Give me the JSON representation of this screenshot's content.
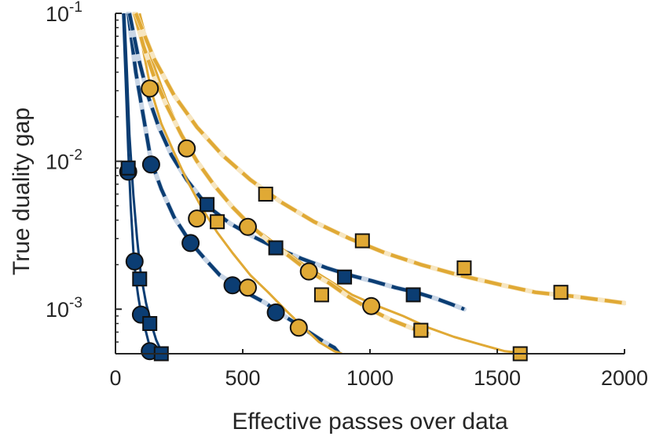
{
  "chart_data": {
    "type": "line",
    "title": "",
    "xlabel": "Effective passes over data",
    "ylabel": "True duality gap",
    "xlim": [
      0,
      2000
    ],
    "ylim": [
      0.0005,
      0.1
    ],
    "yscale": "log",
    "xticks": [
      0,
      500,
      1000,
      1500,
      2000
    ],
    "xtick_labels": [
      "0",
      "500",
      "1000",
      "1500",
      "2000"
    ],
    "yticks": [
      0.1,
      0.01,
      0.001
    ],
    "ytick_labels": [
      {
        "base": "10",
        "exp": "-1"
      },
      {
        "base": "10",
        "exp": "-2"
      },
      {
        "base": "10",
        "exp": "-3"
      }
    ],
    "grid": false,
    "colors": {
      "blue": "#0b3d73",
      "gold": "#e0a935",
      "blue_halo": "#c9d6e6",
      "gold_halo": "#f7e6c0"
    },
    "series": [
      {
        "name": "blue-solid-circle",
        "color": "blue",
        "style": "solid",
        "marker": "circle",
        "halo": false,
        "x": [
          30,
          40,
          50,
          60,
          70,
          80,
          90,
          100,
          110,
          120,
          130,
          140,
          150,
          155
        ],
        "y": [
          0.1,
          0.035,
          0.012,
          0.005,
          0.0025,
          0.0016,
          0.0012,
          0.00095,
          0.0008,
          0.0007,
          0.0006,
          0.00055,
          0.00052,
          0.0005
        ],
        "markers_x": [
          50,
          75,
          100,
          135
        ],
        "markers_y": [
          0.0085,
          0.0021,
          0.00092,
          0.00052
        ]
      },
      {
        "name": "blue-solid-square",
        "color": "blue",
        "style": "solid",
        "marker": "square",
        "halo": false,
        "x": [
          35,
          45,
          55,
          70,
          85,
          100,
          120,
          140,
          160,
          180,
          190
        ],
        "y": [
          0.1,
          0.04,
          0.015,
          0.006,
          0.003,
          0.0017,
          0.0011,
          0.0008,
          0.00062,
          0.00052,
          0.0005
        ],
        "markers_x": [
          50,
          95,
          135,
          180
        ],
        "markers_y": [
          0.009,
          0.0016,
          0.0008,
          0.0005
        ]
      },
      {
        "name": "blue-dashed-circle",
        "color": "blue",
        "style": "dashed",
        "marker": "circle",
        "halo": true,
        "x": [
          50,
          80,
          110,
          140,
          180,
          230,
          290,
          350,
          410,
          470,
          530,
          590,
          640,
          700,
          760,
          820,
          860,
          880
        ],
        "y": [
          0.1,
          0.04,
          0.02,
          0.01,
          0.0065,
          0.0042,
          0.0029,
          0.0022,
          0.0017,
          0.00145,
          0.00125,
          0.0011,
          0.00095,
          0.00082,
          0.0007,
          0.0006,
          0.00055,
          0.0005
        ],
        "markers_x": [
          140,
          295,
          460,
          630
        ],
        "markers_y": [
          0.0095,
          0.0028,
          0.00145,
          0.00095
        ]
      },
      {
        "name": "blue-dashed-square",
        "color": "blue",
        "style": "dashed",
        "marker": "square",
        "halo": true,
        "x": [
          55,
          90,
          130,
          170,
          220,
          280,
          360,
          450,
          540,
          630,
          730,
          830,
          920,
          1010,
          1100,
          1180,
          1260,
          1320,
          1370
        ],
        "y": [
          0.1,
          0.05,
          0.027,
          0.017,
          0.011,
          0.0075,
          0.005,
          0.0038,
          0.0031,
          0.0026,
          0.0022,
          0.0019,
          0.0017,
          0.00155,
          0.0014,
          0.0013,
          0.00118,
          0.00108,
          0.001
        ],
        "markers_x": [
          360,
          630,
          900,
          1170
        ],
        "markers_y": [
          0.0051,
          0.0026,
          0.00165,
          0.00125
        ]
      },
      {
        "name": "gold-solid-circle",
        "color": "gold",
        "style": "solid",
        "marker": "circle",
        "halo": false,
        "x": [
          85,
          110,
          140,
          180,
          230,
          280,
          340,
          400,
          460,
          530,
          600,
          670,
          740,
          800,
          860,
          890
        ],
        "y": [
          0.1,
          0.055,
          0.03,
          0.018,
          0.0115,
          0.0075,
          0.0048,
          0.0033,
          0.0024,
          0.0017,
          0.0013,
          0.00098,
          0.00075,
          0.0006,
          0.00052,
          0.0005
        ],
        "markers_x": [
          135,
          280,
          520,
          720
        ],
        "markers_y": [
          0.031,
          0.0122,
          0.0014,
          0.00075
        ]
      },
      {
        "name": "gold-solid-square",
        "color": "gold",
        "style": "solid",
        "marker": "square",
        "halo": false,
        "x": [
          95,
          140,
          200,
          260,
          330,
          400,
          480,
          560,
          650,
          740,
          830,
          930,
          1030,
          1130,
          1230,
          1330,
          1430,
          1530,
          1620
        ],
        "y": [
          0.1,
          0.05,
          0.026,
          0.015,
          0.0095,
          0.0065,
          0.0046,
          0.0034,
          0.0026,
          0.002,
          0.0016,
          0.00125,
          0.00105,
          0.0009,
          0.00075,
          0.00065,
          0.00058,
          0.00052,
          0.0005
        ],
        "markers_x": [
          400,
          810,
          1200,
          1590
        ],
        "markers_y": [
          0.0039,
          0.00125,
          0.00072,
          0.0005
        ]
      },
      {
        "name": "gold-dashed-circle",
        "color": "gold",
        "style": "dashed",
        "marker": "circle",
        "halo": true,
        "x": [
          75,
          110,
          150,
          200,
          260,
          320,
          390,
          460,
          530,
          600,
          680,
          760,
          840,
          920,
          1000,
          1080,
          1160,
          1230
        ],
        "y": [
          0.1,
          0.06,
          0.038,
          0.024,
          0.015,
          0.01,
          0.0068,
          0.0049,
          0.0037,
          0.0029,
          0.0023,
          0.0018,
          0.0015,
          0.0012,
          0.001,
          0.00085,
          0.00075,
          0.00068
        ],
        "markers_x": [
          320,
          520,
          760,
          1005
        ],
        "markers_y": [
          0.0041,
          0.0036,
          0.0018,
          0.00105
        ]
      },
      {
        "name": "gold-dashed-square",
        "color": "gold",
        "style": "dashed",
        "marker": "square",
        "halo": true,
        "x": [
          80,
          150,
          230,
          320,
          420,
          530,
          650,
          780,
          920,
          1060,
          1200,
          1350,
          1500,
          1650,
          1800,
          1950,
          2000
        ],
        "y": [
          0.1,
          0.05,
          0.028,
          0.017,
          0.011,
          0.0075,
          0.0053,
          0.0039,
          0.003,
          0.0024,
          0.002,
          0.0017,
          0.00148,
          0.0013,
          0.00122,
          0.00113,
          0.0011
        ],
        "markers_x": [
          590,
          970,
          1370,
          1750
        ],
        "markers_y": [
          0.006,
          0.0029,
          0.0019,
          0.0013
        ]
      }
    ]
  }
}
